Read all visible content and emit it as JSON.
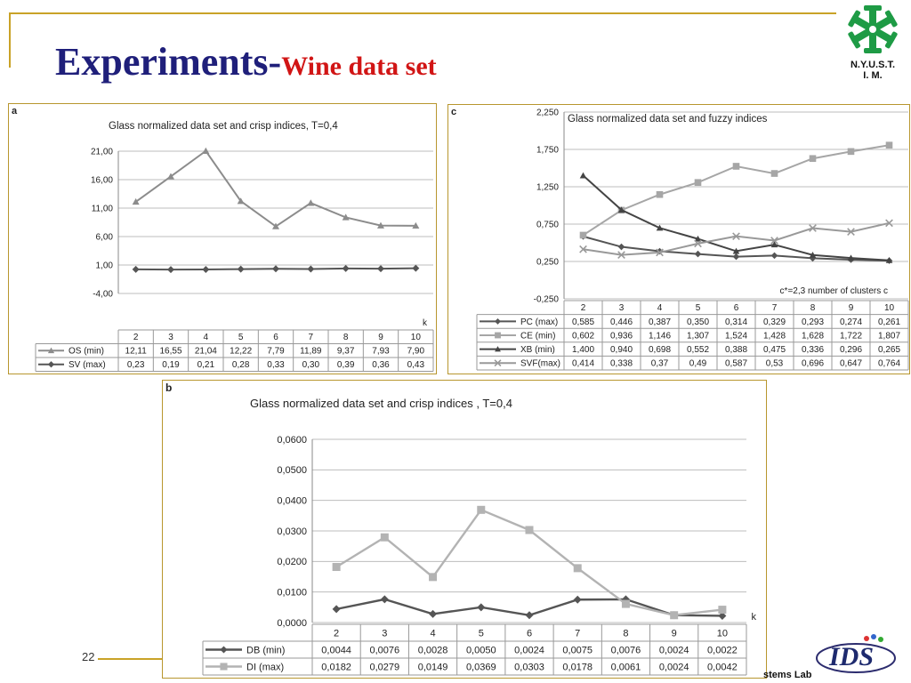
{
  "slide": {
    "title_main": "Experiments-",
    "title_sub": "Wine data set",
    "page_number": "22",
    "org_line1": "N.Y.U.S.T.",
    "org_line2": "I. M.",
    "lab_logo_text": "IDS",
    "lab_caption": "stems Lab"
  },
  "chart_data": [
    {
      "panel": "a",
      "type": "line",
      "title": "Glass normalized data set and crisp indices, T=0,4",
      "xlabel": "k",
      "categories": [
        "2",
        "3",
        "4",
        "5",
        "6",
        "7",
        "8",
        "9",
        "10"
      ],
      "yticks": [
        "21,00",
        "16,00",
        "11,00",
        "6,00",
        "1,00",
        "-4,00"
      ],
      "ylim": [
        -4,
        21
      ],
      "series": [
        {
          "name": "OS (min)",
          "marker": "triangle",
          "color": "#8c8c8c",
          "values": [
            12.11,
            16.55,
            21.04,
            12.22,
            7.79,
            11.89,
            9.37,
            7.93,
            7.9
          ],
          "labels": [
            "12,11",
            "16,55",
            "21,04",
            "12,22",
            "7,79",
            "11,89",
            "9,37",
            "7,93",
            "7,90"
          ]
        },
        {
          "name": "SV (max)",
          "marker": "diamond",
          "color": "#555555",
          "values": [
            0.23,
            0.19,
            0.21,
            0.28,
            0.33,
            0.3,
            0.39,
            0.36,
            0.43
          ],
          "labels": [
            "0,23",
            "0,19",
            "0,21",
            "0,28",
            "0,33",
            "0,30",
            "0,39",
            "0,36",
            "0,43"
          ]
        }
      ]
    },
    {
      "panel": "c",
      "type": "line",
      "title": "Glass normalized  data set and fuzzy indices",
      "xlabel": "c*=2,3      number of clusters  c",
      "categories": [
        "2",
        "3",
        "4",
        "5",
        "6",
        "7",
        "8",
        "9",
        "10"
      ],
      "yticks": [
        "2,250",
        "1,750",
        "1,250",
        "0,750",
        "0,250",
        "-0,250"
      ],
      "ylim": [
        -0.25,
        2.25
      ],
      "series": [
        {
          "name": "PC (max)",
          "marker": "diamond",
          "color": "#555555",
          "values": [
            0.585,
            0.446,
            0.387,
            0.35,
            0.314,
            0.329,
            0.293,
            0.274,
            0.261
          ],
          "labels": [
            "0,585",
            "0,446",
            "0,387",
            "0,350",
            "0,314",
            "0,329",
            "0,293",
            "0,274",
            "0,261"
          ]
        },
        {
          "name": "CE (min)",
          "marker": "square",
          "color": "#a6a6a6",
          "values": [
            0.602,
            0.936,
            1.146,
            1.307,
            1.524,
            1.428,
            1.628,
            1.722,
            1.807
          ],
          "labels": [
            "0,602",
            "0,936",
            "1,146",
            "1,307",
            "1,524",
            "1,428",
            "1,628",
            "1,722",
            "1,807"
          ]
        },
        {
          "name": "XB (min)",
          "marker": "triangle",
          "color": "#444444",
          "values": [
            1.4,
            0.94,
            0.698,
            0.552,
            0.388,
            0.475,
            0.336,
            0.296,
            0.265
          ],
          "labels": [
            "1,400",
            "0,940",
            "0,698",
            "0,552",
            "0,388",
            "0,475",
            "0,336",
            "0,296",
            "0,265"
          ]
        },
        {
          "name": "SVF(max)",
          "marker": "x",
          "color": "#999999",
          "values": [
            0.414,
            0.338,
            0.37,
            0.49,
            0.587,
            0.53,
            0.696,
            0.647,
            0.764
          ],
          "labels": [
            "0,414",
            "0,338",
            "0,37",
            "0,49",
            "0,587",
            "0,53",
            "0,696",
            "0,647",
            "0,764"
          ]
        }
      ]
    },
    {
      "panel": "b",
      "type": "line",
      "title": "Glass normalized data set and crisp indices , T=0,4",
      "xlabel": "k",
      "categories": [
        "2",
        "3",
        "4",
        "5",
        "6",
        "7",
        "8",
        "9",
        "10"
      ],
      "yticks": [
        "0,0600",
        "0,0500",
        "0,0400",
        "0,0300",
        "0,0200",
        "0,0100",
        "0,0000"
      ],
      "ylim": [
        0,
        0.06
      ],
      "series": [
        {
          "name": "DB  (min)",
          "marker": "diamond",
          "color": "#555555",
          "values": [
            0.0044,
            0.0076,
            0.0028,
            0.005,
            0.0024,
            0.0075,
            0.0076,
            0.0024,
            0.0022
          ],
          "labels": [
            "0,0044",
            "0,0076",
            "0,0028",
            "0,0050",
            "0,0024",
            "0,0075",
            "0,0076",
            "0,0024",
            "0,0022"
          ]
        },
        {
          "name": "DI (max)",
          "marker": "square",
          "color": "#b3b3b3",
          "values": [
            0.0182,
            0.0279,
            0.0149,
            0.0369,
            0.0303,
            0.0178,
            0.0061,
            0.0024,
            0.0042
          ],
          "labels": [
            "0,0182",
            "0,0279",
            "0,0149",
            "0,0369",
            "0,0303",
            "0,0178",
            "0,0061",
            "0,0024",
            "0,0042"
          ]
        }
      ]
    }
  ]
}
